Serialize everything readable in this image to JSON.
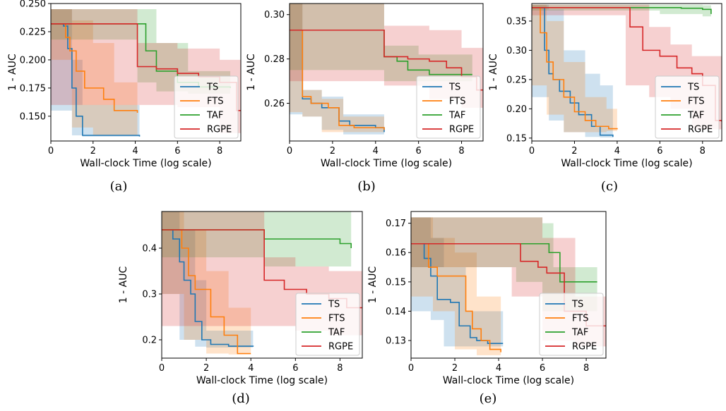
{
  "colors": {
    "TS": "#1f77b4",
    "FTS": "#ff7f0e",
    "TAF": "#2ca02c",
    "RGPE": "#d62728"
  },
  "chart_data": [
    {
      "id": "a",
      "caption": "(a)",
      "type": "line",
      "xlabel": "Wall-clock Time (log scale)",
      "ylabel": "1 - AUC",
      "xlim": [
        0,
        9
      ],
      "ylim": [
        0.128,
        0.25
      ],
      "xticks": [
        0,
        2,
        4,
        6,
        8
      ],
      "yticks": [
        0.15,
        0.175,
        0.2,
        0.225,
        0.25
      ],
      "ytick_labels": [
        "0.150",
        "0.175",
        "0.200",
        "0.225",
        "0.250"
      ],
      "legend": [
        "TS",
        "FTS",
        "TAF",
        "RGPE"
      ],
      "series": [
        {
          "name": "TS",
          "x": [
            0,
            0.6,
            0.8,
            1.0,
            1.2,
            1.5,
            4.2
          ],
          "y": [
            0.232,
            0.23,
            0.21,
            0.175,
            0.15,
            0.133,
            0.132
          ],
          "band": {
            "x": [
              0,
              1.0,
              1.5,
              4.2
            ],
            "lo": [
              0.218,
              0.155,
              0.133,
              0.132
            ],
            "hi": [
              0.245,
              0.2,
              0.16,
              0.133
            ]
          }
        },
        {
          "name": "FTS",
          "x": [
            0,
            0.7,
            0.9,
            1.2,
            1.6,
            2.5,
            3.0,
            4.1
          ],
          "y": [
            0.232,
            0.22,
            0.208,
            0.19,
            0.175,
            0.165,
            0.155,
            0.153
          ],
          "band": {
            "x": [
              0,
              1.0,
              2.0,
              3.0,
              4.1
            ],
            "lo": [
              0.218,
              0.2,
              0.14,
              0.133,
              0.133
            ],
            "hi": [
              0.245,
              0.235,
              0.215,
              0.18,
              0.175
            ]
          }
        },
        {
          "name": "TAF",
          "x": [
            0,
            4.1,
            4.5,
            5.0,
            6.0,
            7.0,
            8.5
          ],
          "y": [
            0.232,
            0.232,
            0.208,
            0.19,
            0.18,
            0.176,
            0.175
          ],
          "band": {
            "x": [
              0,
              4.1,
              5.0,
              6.5,
              8.5
            ],
            "lo": [
              0.218,
              0.218,
              0.18,
              0.172,
              0.17
            ],
            "hi": [
              0.245,
              0.245,
              0.215,
              0.19,
              0.182
            ]
          }
        },
        {
          "name": "RGPE",
          "x": [
            0,
            4.1,
            5.0,
            6.0,
            7.0,
            8.0,
            8.8,
            9.0
          ],
          "y": [
            0.232,
            0.194,
            0.192,
            0.188,
            0.185,
            0.18,
            0.155,
            0.155
          ],
          "band": {
            "x": [
              0,
              4.1,
              6.0,
              8.0,
              9.0
            ],
            "lo": [
              0.218,
              0.16,
              0.16,
              0.158,
              0.135
            ],
            "hi": [
              0.245,
              0.215,
              0.21,
              0.2,
              0.195
            ]
          }
        }
      ]
    },
    {
      "id": "b",
      "caption": "(b)",
      "type": "line",
      "xlabel": "Wall-clock Time (log scale)",
      "ylabel": "1 - AUC",
      "xlim": [
        0,
        9
      ],
      "ylim": [
        0.243,
        0.305
      ],
      "xticks": [
        0,
        2,
        4,
        6,
        8
      ],
      "yticks": [
        0.26,
        0.28,
        0.3
      ],
      "ytick_labels": [
        "0.26",
        "0.28",
        "0.30"
      ],
      "legend": [
        "TS",
        "FTS",
        "TAF",
        "RGPE"
      ],
      "series": [
        {
          "name": "TS",
          "x": [
            0,
            0.55,
            0.6,
            1.0,
            1.5,
            2.3,
            2.8,
            4.0,
            4.4
          ],
          "y": [
            0.293,
            0.293,
            0.262,
            0.26,
            0.258,
            0.252,
            0.25,
            0.249,
            0.247
          ],
          "band": {
            "x": [
              0,
              0.6,
              1.5,
              2.5,
              4.4
            ],
            "lo": [
              0.282,
              0.255,
              0.254,
              0.248,
              0.246
            ],
            "hi": [
              0.305,
              0.266,
              0.263,
              0.255,
              0.251
            ]
          }
        },
        {
          "name": "FTS",
          "x": [
            0,
            0.55,
            0.6,
            1.0,
            1.8,
            2.3,
            3.0,
            4.4
          ],
          "y": [
            0.293,
            0.293,
            0.263,
            0.26,
            0.258,
            0.25,
            0.249,
            0.248
          ],
          "band": {
            "x": [
              0,
              0.6,
              1.5,
              2.5,
              4.4
            ],
            "lo": [
              0.282,
              0.256,
              0.254,
              0.247,
              0.247
            ],
            "hi": [
              0.305,
              0.266,
              0.262,
              0.254,
              0.25
            ]
          }
        },
        {
          "name": "TAF",
          "x": [
            0,
            4.4,
            5.0,
            5.5,
            6.5,
            8.5
          ],
          "y": [
            0.293,
            0.281,
            0.279,
            0.275,
            0.273,
            0.273
          ],
          "band": {
            "x": [
              0,
              4.4,
              6.0,
              8.5
            ],
            "lo": [
              0.282,
              0.275,
              0.27,
              0.27
            ],
            "hi": [
              0.305,
              0.286,
              0.282,
              0.279
            ]
          }
        },
        {
          "name": "RGPE",
          "x": [
            0,
            4.4,
            5.5,
            6.5,
            7.3,
            8.0,
            8.7,
            9.0
          ],
          "y": [
            0.293,
            0.281,
            0.28,
            0.279,
            0.276,
            0.272,
            0.266,
            0.266
          ],
          "band": {
            "x": [
              0,
              4.4,
              6.5,
              8.0,
              9.0
            ],
            "lo": [
              0.282,
              0.27,
              0.268,
              0.262,
              0.258
            ],
            "hi": [
              0.305,
              0.295,
              0.293,
              0.285,
              0.28
            ]
          }
        }
      ]
    },
    {
      "id": "c",
      "caption": "(c)",
      "type": "line",
      "xlabel": "Wall-clock Time (log scale)",
      "ylabel": "1 - AUC",
      "xlim": [
        0,
        8.9
      ],
      "ylim": [
        0.145,
        0.38
      ],
      "xticks": [
        0,
        2,
        4,
        6,
        8
      ],
      "yticks": [
        0.15,
        0.2,
        0.25,
        0.3,
        0.35
      ],
      "ytick_labels": [
        "0.15",
        "0.20",
        "0.25",
        "0.30",
        "0.35"
      ],
      "legend": [
        "TS",
        "FTS",
        "TAF",
        "RGPE"
      ],
      "series": [
        {
          "name": "TS",
          "x": [
            0,
            0.6,
            0.8,
            1.0,
            1.3,
            1.8,
            2.2,
            2.8,
            3.2,
            3.8
          ],
          "y": [
            0.373,
            0.3,
            0.26,
            0.25,
            0.23,
            0.21,
            0.19,
            0.17,
            0.155,
            0.152
          ],
          "band": {
            "x": [
              0,
              0.8,
              1.5,
              2.5,
              3.2,
              3.8
            ],
            "lo": [
              0.36,
              0.22,
              0.18,
              0.16,
              0.152,
              0.151
            ],
            "hi": [
              0.378,
              0.37,
              0.3,
              0.26,
              0.24,
              0.155
            ]
          }
        },
        {
          "name": "FTS",
          "x": [
            0,
            0.4,
            0.7,
            1.0,
            1.5,
            2.0,
            2.5,
            3.0,
            3.6,
            4.0
          ],
          "y": [
            0.373,
            0.33,
            0.28,
            0.25,
            0.22,
            0.195,
            0.18,
            0.17,
            0.166,
            0.165
          ],
          "band": {
            "x": [
              0,
              0.7,
              1.5,
              2.5,
              3.5,
              4.0
            ],
            "lo": [
              0.36,
              0.24,
              0.19,
              0.16,
              0.16,
              0.162
            ],
            "hi": [
              0.378,
              0.35,
              0.28,
              0.22,
              0.2,
              0.17
            ]
          }
        },
        {
          "name": "TAF",
          "x": [
            0,
            5.0,
            7.0,
            8.0,
            8.4
          ],
          "y": [
            0.373,
            0.373,
            0.372,
            0.37,
            0.362
          ],
          "band": {
            "x": [
              0,
              6.0,
              8.0,
              8.4
            ],
            "lo": [
              0.36,
              0.368,
              0.362,
              0.358
            ],
            "hi": [
              0.378,
              0.378,
              0.377,
              0.372
            ]
          }
        },
        {
          "name": "RGPE",
          "x": [
            0,
            4.4,
            4.6,
            5.2,
            6.0,
            6.8,
            7.5,
            8.0,
            8.6,
            8.9
          ],
          "y": [
            0.373,
            0.373,
            0.34,
            0.3,
            0.29,
            0.27,
            0.26,
            0.24,
            0.18,
            0.178
          ],
          "band": {
            "x": [
              0,
              4.4,
              5.5,
              6.5,
              7.5,
              8.9
            ],
            "lo": [
              0.36,
              0.36,
              0.24,
              0.22,
              0.2,
              0.165
            ],
            "hi": [
              0.378,
              0.378,
              0.34,
              0.31,
              0.29,
              0.2
            ]
          }
        }
      ]
    },
    {
      "id": "d",
      "caption": "(d)",
      "type": "line",
      "xlabel": "Wall-clock Time (log scale)",
      "ylabel": "1 - AUC",
      "xlim": [
        0,
        9
      ],
      "ylim": [
        0.16,
        0.48
      ],
      "xticks": [
        0,
        2,
        4,
        6,
        8
      ],
      "yticks": [
        0.2,
        0.3,
        0.4
      ],
      "ytick_labels": [
        "0.2",
        "0.3",
        "0.4"
      ],
      "legend": [
        "TS",
        "FTS",
        "TAF",
        "RGPE"
      ],
      "series": [
        {
          "name": "TS",
          "x": [
            0,
            0.5,
            0.8,
            1.0,
            1.3,
            1.5,
            1.8,
            2.2,
            3.0,
            4.1
          ],
          "y": [
            0.44,
            0.42,
            0.37,
            0.33,
            0.3,
            0.24,
            0.2,
            0.19,
            0.186,
            0.185
          ],
          "band": {
            "x": [
              0,
              0.8,
              1.5,
              2.0,
              4.1
            ],
            "lo": [
              0.4,
              0.3,
              0.2,
              0.185,
              0.183
            ],
            "hi": [
              0.48,
              0.44,
              0.33,
              0.22,
              0.19
            ]
          }
        },
        {
          "name": "FTS",
          "x": [
            0,
            0.9,
            1.2,
            1.5,
            1.8,
            2.2,
            2.8,
            3.4,
            4.0
          ],
          "y": [
            0.44,
            0.4,
            0.34,
            0.31,
            0.31,
            0.25,
            0.21,
            0.17,
            0.17
          ],
          "band": {
            "x": [
              0,
              1.0,
              2.0,
              3.0,
              4.0
            ],
            "lo": [
              0.4,
              0.3,
              0.2,
              0.17,
              0.168
            ],
            "hi": [
              0.48,
              0.44,
              0.35,
              0.27,
              0.2
            ]
          }
        },
        {
          "name": "TAF",
          "x": [
            0,
            4.6,
            7.0,
            8.0,
            8.5
          ],
          "y": [
            0.44,
            0.42,
            0.42,
            0.41,
            0.4
          ],
          "band": {
            "x": [
              0,
              4.6,
              7.0,
              8.5
            ],
            "lo": [
              0.4,
              0.38,
              0.36,
              0.36
            ],
            "hi": [
              0.48,
              0.48,
              0.48,
              0.47
            ]
          }
        },
        {
          "name": "RGPE",
          "x": [
            0,
            4.6,
            5.5,
            6.5,
            7.5,
            8.3,
            9.0
          ],
          "y": [
            0.44,
            0.33,
            0.31,
            0.3,
            0.29,
            0.27,
            0.27
          ],
          "band": {
            "x": [
              0,
              4.6,
              6.0,
              7.5,
              9.0
            ],
            "lo": [
              0.4,
              0.23,
              0.23,
              0.22,
              0.21
            ],
            "hi": [
              0.48,
              0.38,
              0.36,
              0.35,
              0.33
            ]
          }
        }
      ]
    },
    {
      "id": "e",
      "caption": "(e)",
      "type": "line",
      "xlabel": "Wall-clock Time (log scale)",
      "ylabel": "1 - AUC",
      "xlim": [
        0,
        8.9
      ],
      "ylim": [
        0.124,
        0.174
      ],
      "xticks": [
        0,
        2,
        4,
        6,
        8
      ],
      "yticks": [
        0.13,
        0.14,
        0.15,
        0.16,
        0.17
      ],
      "ytick_labels": [
        "0.13",
        "0.14",
        "0.15",
        "0.16",
        "0.17"
      ],
      "legend": [
        "TS",
        "FTS",
        "TAF",
        "RGPE"
      ],
      "series": [
        {
          "name": "TS",
          "x": [
            0,
            0.6,
            0.9,
            1.2,
            1.8,
            2.2,
            2.7,
            3.0,
            3.5,
            4.2
          ],
          "y": [
            0.163,
            0.158,
            0.152,
            0.144,
            0.143,
            0.135,
            0.131,
            0.13,
            0.129,
            0.129
          ],
          "band": {
            "x": [
              0,
              0.9,
              1.5,
              2.5,
              4.2
            ],
            "lo": [
              0.155,
              0.14,
              0.137,
              0.128,
              0.128
            ],
            "hi": [
              0.172,
              0.165,
              0.155,
              0.14,
              0.131
            ]
          }
        },
        {
          "name": "FTS",
          "x": [
            0,
            0.8,
            1.2,
            2.2,
            2.5,
            2.8,
            3.2,
            3.6,
            4.1
          ],
          "y": [
            0.163,
            0.155,
            0.152,
            0.152,
            0.14,
            0.134,
            0.13,
            0.127,
            0.126
          ],
          "band": {
            "x": [
              0,
              1.0,
              2.0,
              3.0,
              4.1
            ],
            "lo": [
              0.155,
              0.145,
              0.14,
              0.127,
              0.125
            ],
            "hi": [
              0.172,
              0.165,
              0.16,
              0.145,
              0.13
            ]
          }
        },
        {
          "name": "TAF",
          "x": [
            0,
            4.8,
            5.8,
            6.3,
            6.8,
            8.5
          ],
          "y": [
            0.163,
            0.163,
            0.163,
            0.16,
            0.15,
            0.15
          ],
          "band": {
            "x": [
              0,
              4.8,
              6.0,
              6.5,
              8.5
            ],
            "lo": [
              0.155,
              0.155,
              0.15,
              0.14,
              0.14
            ],
            "hi": [
              0.172,
              0.172,
              0.17,
              0.155,
              0.155
            ]
          }
        },
        {
          "name": "RGPE",
          "x": [
            0,
            4.6,
            5.0,
            5.8,
            6.2,
            7.0,
            8.0,
            8.9
          ],
          "y": [
            0.163,
            0.163,
            0.157,
            0.155,
            0.153,
            0.14,
            0.135,
            0.135
          ],
          "band": {
            "x": [
              0,
              4.6,
              6.0,
              7.5,
              8.9
            ],
            "lo": [
              0.155,
              0.155,
              0.145,
              0.13,
              0.128
            ],
            "hi": [
              0.172,
              0.172,
              0.165,
              0.145,
              0.14
            ]
          }
        }
      ]
    }
  ]
}
